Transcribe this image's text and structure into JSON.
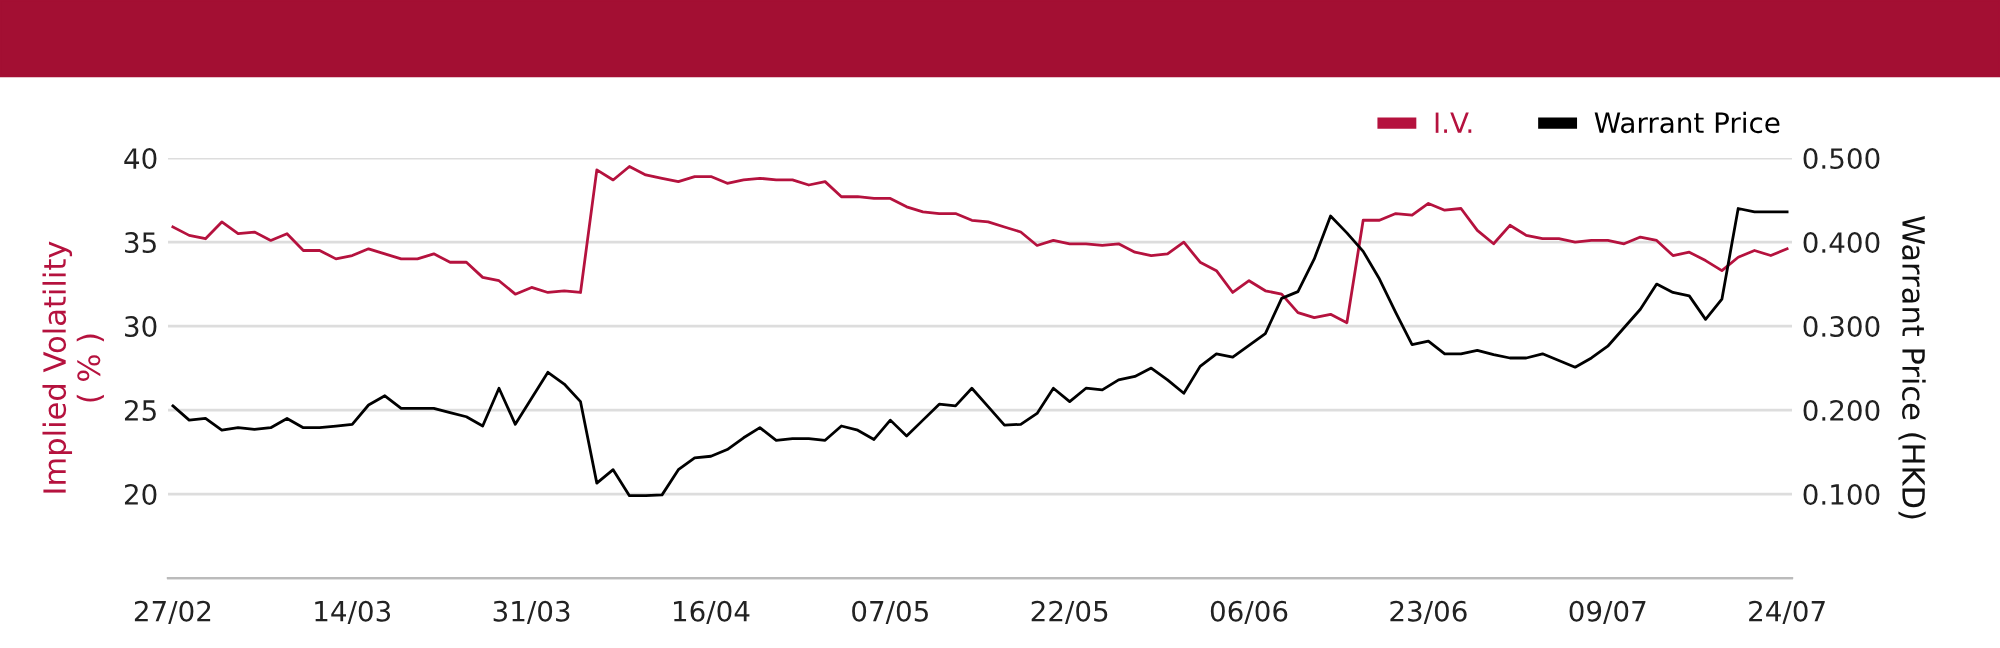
{
  "chart_data": {
    "type": "line",
    "categories": [
      "27/02",
      null,
      null,
      null,
      null,
      null,
      null,
      null,
      null,
      null,
      null,
      "14/03",
      null,
      null,
      null,
      null,
      null,
      null,
      null,
      null,
      null,
      null,
      "31/03",
      null,
      null,
      null,
      null,
      null,
      null,
      null,
      null,
      null,
      null,
      "16/04",
      null,
      null,
      null,
      null,
      null,
      null,
      null,
      null,
      null,
      null,
      "07/05",
      null,
      null,
      null,
      null,
      null,
      null,
      null,
      null,
      null,
      null,
      "22/05",
      null,
      null,
      null,
      null,
      null,
      null,
      null,
      null,
      null,
      null,
      "06/06",
      null,
      null,
      null,
      null,
      null,
      null,
      null,
      null,
      null,
      null,
      "23/06",
      null,
      null,
      null,
      null,
      null,
      null,
      null,
      null,
      null,
      null,
      "09/07",
      null,
      null,
      null,
      null,
      null,
      null,
      null,
      null,
      null,
      null,
      "24/07"
    ],
    "series": [
      {
        "name": "I.V.",
        "color": "#b5123e",
        "values": [
          35.9,
          35.4,
          35.2,
          36.2,
          35.5,
          35.6,
          35.1,
          35.5,
          34.5,
          34.5,
          34.0,
          34.2,
          34.6,
          34.3,
          34.0,
          34.0,
          34.3,
          33.8,
          33.8,
          32.9,
          32.7,
          31.9,
          32.3,
          32.0,
          32.1,
          32.0,
          39.3,
          38.7,
          39.5,
          39.0,
          38.8,
          38.6,
          38.9,
          38.9,
          38.5,
          38.7,
          38.8,
          38.7,
          38.7,
          38.4,
          38.6,
          37.7,
          37.7,
          37.6,
          37.6,
          37.1,
          36.8,
          36.7,
          36.7,
          36.3,
          36.2,
          35.9,
          35.6,
          34.8,
          35.1,
          34.9,
          34.9,
          34.8,
          34.9,
          34.4,
          34.2,
          34.3,
          35.0,
          33.8,
          33.3,
          32.0,
          32.7,
          32.1,
          31.9,
          30.8,
          30.5,
          30.7,
          30.2,
          36.3,
          36.3,
          36.7,
          36.6,
          37.3,
          36.9,
          37.0,
          35.7,
          34.9,
          36.0,
          35.4,
          35.2,
          35.2,
          35.0,
          35.1,
          35.1,
          34.9,
          35.3,
          35.1,
          34.2,
          34.4,
          33.9,
          33.3,
          34.1,
          34.5,
          34.2,
          34.6
        ]
      },
      {
        "name": "Warrant Price",
        "color": "#000000",
        "axis": "y2",
        "values": [
          0.205,
          0.188,
          0.19,
          0.176,
          0.179,
          0.177,
          0.179,
          0.19,
          0.179,
          0.179,
          0.181,
          0.183,
          0.206,
          0.217,
          0.202,
          0.202,
          0.202,
          0.197,
          0.192,
          0.181,
          0.226,
          0.183,
          0.214,
          0.245,
          0.231,
          0.21,
          0.113,
          0.129,
          0.098,
          0.098,
          0.099,
          0.129,
          0.143,
          0.145,
          0.153,
          0.167,
          0.179,
          0.164,
          0.166,
          0.166,
          0.164,
          0.181,
          0.176,
          0.165,
          0.188,
          0.169,
          0.188,
          0.207,
          0.205,
          0.226,
          0.204,
          0.182,
          0.183,
          0.196,
          0.226,
          0.21,
          0.226,
          0.224,
          0.236,
          0.24,
          0.25,
          0.236,
          0.22,
          0.252,
          0.267,
          0.263,
          0.277,
          0.291,
          0.333,
          0.341,
          0.38,
          0.431,
          0.411,
          0.389,
          0.356,
          0.316,
          0.278,
          0.282,
          0.267,
          0.267,
          0.271,
          0.266,
          0.262,
          0.262,
          0.267,
          0.259,
          0.251,
          0.262,
          0.276,
          0.298,
          0.32,
          0.35,
          0.34,
          0.336,
          0.308,
          0.332,
          0.44,
          0.436,
          0.436,
          0.436
        ]
      }
    ],
    "ylabel": "Implied Volatility\n( % )",
    "y2label": "Warrant Price (HKD)",
    "ylim": [
      15,
      40
    ],
    "yticks": [
      20,
      25,
      30,
      35,
      40
    ],
    "y2lim": [
      0,
      0.5
    ],
    "y2ticks": [
      {
        "value": 0.1,
        "label": "0.100"
      },
      {
        "value": 0.2,
        "label": "0.200"
      },
      {
        "value": 0.3,
        "label": "0.300"
      },
      {
        "value": 0.4,
        "label": "0.400"
      },
      {
        "value": 0.5,
        "label": "0.500"
      }
    ],
    "grid": "y",
    "legend": "top right",
    "marker": "none",
    "line_style": "solid"
  }
}
